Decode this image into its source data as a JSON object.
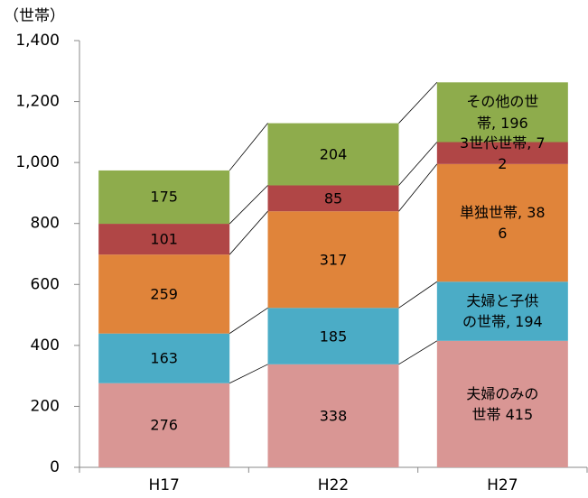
{
  "chart_data": {
    "type": "stacked_bar",
    "y_label": "（世帯）",
    "categories": [
      "H17",
      "H22",
      "H27"
    ],
    "series": [
      {
        "name": "夫婦のみの世帯",
        "color": "#d99694",
        "values": [
          276,
          338,
          415
        ],
        "value_labels": [
          "276",
          "338",
          "夫婦のみの世帯 415"
        ]
      },
      {
        "name": "夫婦と子供の世帯",
        "color": "#4bacc6",
        "values": [
          163,
          185,
          194
        ],
        "value_labels": [
          "163",
          "185",
          "夫婦と子供の世帯, 194"
        ]
      },
      {
        "name": "単独世帯",
        "color": "#e0843a",
        "values": [
          259,
          317,
          386
        ],
        "value_labels": [
          "259",
          "317",
          "単独世帯, 386"
        ]
      },
      {
        "name": "3世代世帯",
        "color": "#b04646",
        "values": [
          101,
          85,
          72
        ],
        "value_labels": [
          "101",
          "85",
          "3世代世帯, 72"
        ]
      },
      {
        "name": "その他の世帯",
        "color": "#8eac4c",
        "values": [
          175,
          204,
          196
        ],
        "value_labels": [
          "175",
          "204",
          "その他の世帯, 196"
        ]
      }
    ],
    "ylim": [
      0,
      1400
    ],
    "yticks": [
      0,
      200,
      400,
      600,
      800,
      {
        "value": 1000,
        "label": "1,000"
      },
      {
        "value": 1200,
        "label": "1,200"
      },
      {
        "value": 1400,
        "label": "1,400"
      }
    ],
    "grid": false
  }
}
